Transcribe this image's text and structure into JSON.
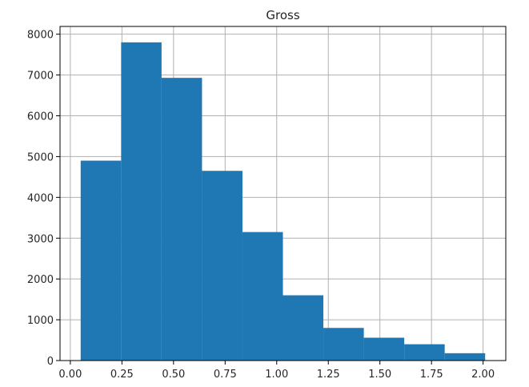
{
  "chart_data": {
    "type": "bar",
    "title": "Gross",
    "xlabel": "",
    "ylabel": "",
    "bins": [
      {
        "x0": 0.05,
        "x1": 0.246,
        "count": 4900
      },
      {
        "x0": 0.246,
        "x1": 0.442,
        "count": 7800
      },
      {
        "x0": 0.442,
        "x1": 0.638,
        "count": 6930
      },
      {
        "x0": 0.638,
        "x1": 0.834,
        "count": 4650
      },
      {
        "x0": 0.834,
        "x1": 1.03,
        "count": 3150
      },
      {
        "x0": 1.03,
        "x1": 1.226,
        "count": 1600
      },
      {
        "x0": 1.226,
        "x1": 1.422,
        "count": 800
      },
      {
        "x0": 1.422,
        "x1": 1.618,
        "count": 560
      },
      {
        "x0": 1.618,
        "x1": 1.814,
        "count": 400
      },
      {
        "x0": 1.814,
        "x1": 2.01,
        "count": 180
      }
    ],
    "xlim": [
      -0.05,
      2.11
    ],
    "ylim": [
      0,
      8190
    ],
    "xticks": [
      0.0,
      0.25,
      0.5,
      0.75,
      1.0,
      1.25,
      1.5,
      1.75,
      2.0
    ],
    "xtick_labels": [
      "0.00",
      "0.25",
      "0.50",
      "0.75",
      "1.00",
      "1.25",
      "1.50",
      "1.75",
      "2.00"
    ],
    "yticks": [
      0,
      1000,
      2000,
      3000,
      4000,
      5000,
      6000,
      7000,
      8000
    ],
    "ytick_labels": [
      "0",
      "1000",
      "2000",
      "3000",
      "4000",
      "5000",
      "6000",
      "7000",
      "8000"
    ],
    "grid": true,
    "bar_color": "#1f77b4",
    "grid_color": "#b0b0b0"
  }
}
